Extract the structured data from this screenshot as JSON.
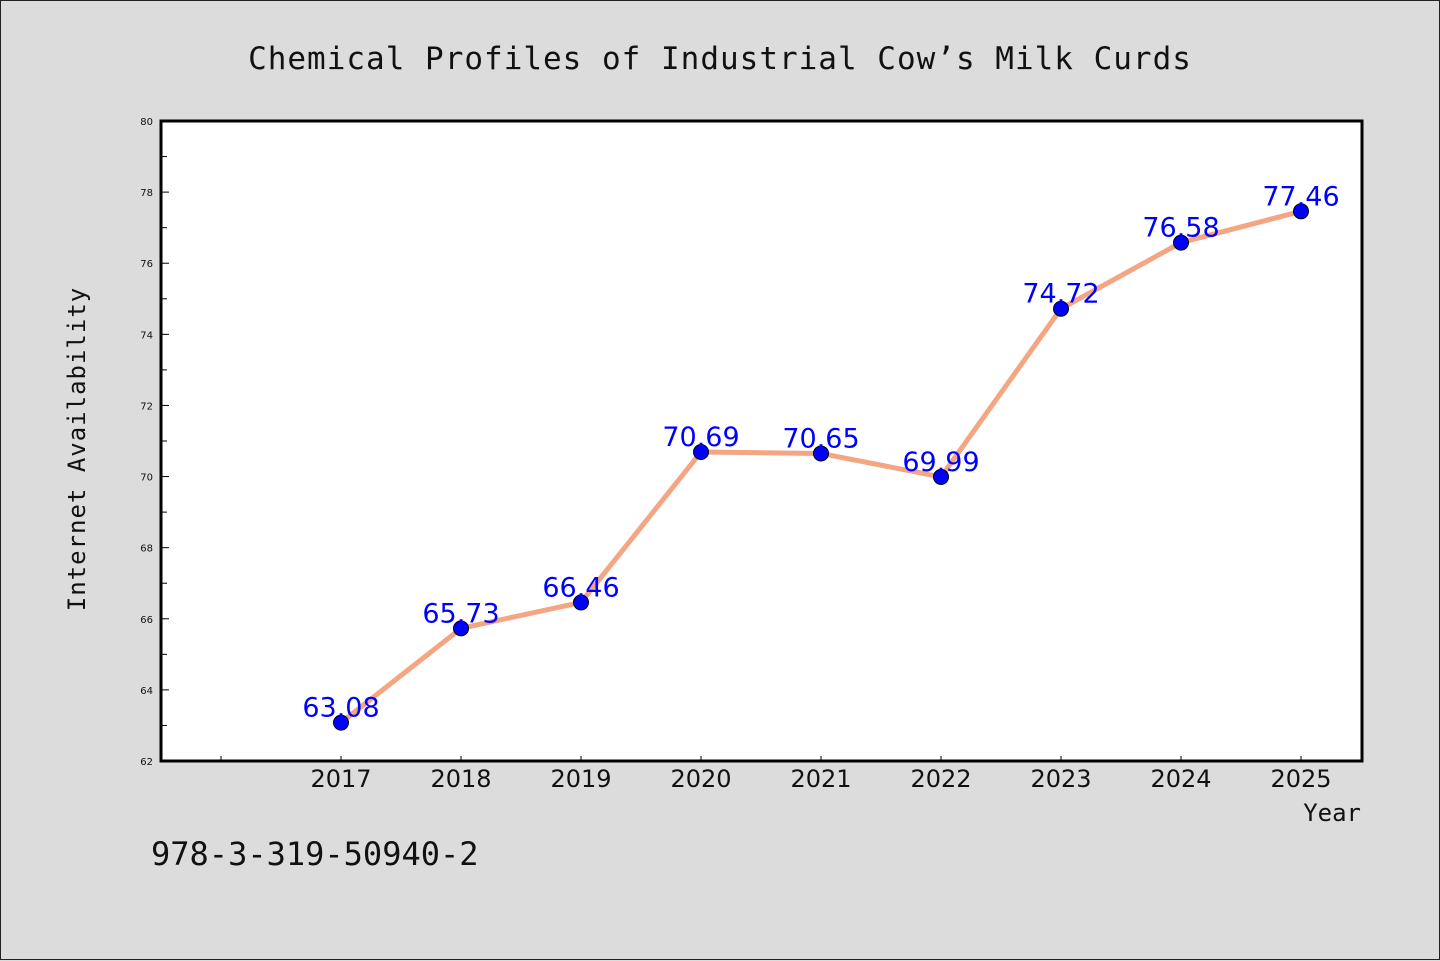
{
  "chart_data": {
    "type": "line",
    "title": "Chemical Profiles of Industrial Cow’s Milk Curds",
    "xlabel": "Year",
    "ylabel": "Internet Availability",
    "categories": [
      "2017",
      "2018",
      "2019",
      "2020",
      "2021",
      "2022",
      "2023",
      "2024",
      "2025"
    ],
    "values": [
      63.08,
      65.73,
      66.46,
      70.69,
      70.65,
      69.99,
      74.72,
      76.58,
      77.46
    ],
    "data_labels": [
      "63.08",
      "65.73",
      "66.46",
      "70.69",
      "70.65",
      "69.99",
      "74.72",
      "76.58",
      "77.46"
    ],
    "ylim": [
      62,
      80
    ],
    "yticks": [
      "62",
      "64",
      "66",
      "68",
      "70",
      "72",
      "74",
      "76",
      "78",
      "80"
    ],
    "grid": false,
    "legend": "none",
    "colors": {
      "line": "#f4a582",
      "marker": "#0000ff",
      "label": "#0000ff"
    }
  },
  "footnote": "978-3-319-50940-2"
}
